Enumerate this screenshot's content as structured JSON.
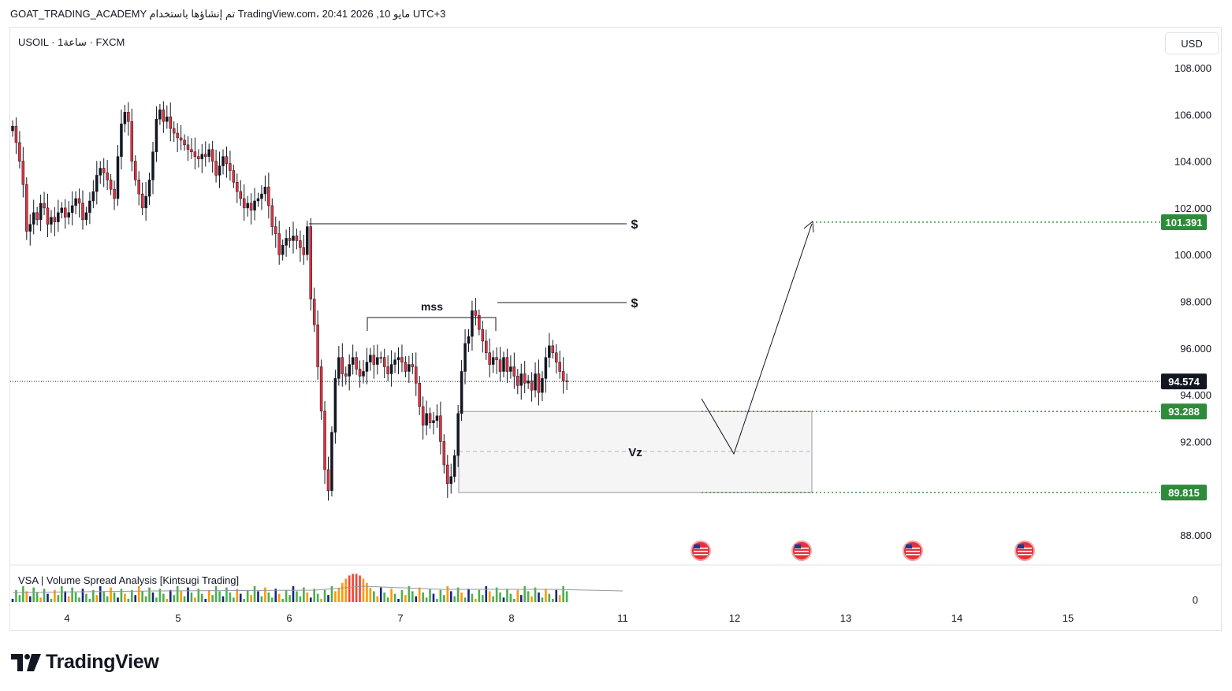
{
  "header": {
    "author_line": "GOAT_TRADING_ACADEMY تم إنشاؤها باستخدام TradingView.com، 20:41 2026 ,10 مايو UTC+3"
  },
  "symbol_line": "USOIL · 1ساعة · FXCM",
  "currency_button": "USD",
  "indicator_label": "VSA  |  Volume Spread Analysis [Kintsugi Trading]",
  "indicator_zero_label": "0",
  "brand": {
    "name": "TradingView"
  },
  "colors": {
    "bull": "#131722",
    "bear": "#e5303b",
    "level_green": "#2e8b3a",
    "current_price_tag": "#131722",
    "volume_green": "#4caf50",
    "volume_orange": "#ff9800",
    "volume_navy": "#1a237e"
  },
  "annotations": {
    "mss": "mss",
    "vz": "Vz",
    "liquidity_1": "$",
    "liquidity_2": "$"
  },
  "price_tags": {
    "current": "94.574",
    "target": "101.391",
    "zone_top": "93.288",
    "zone_bottom": "89.815"
  },
  "chart_data": {
    "type": "candlestick",
    "symbol": "USOIL",
    "timeframe": "1h",
    "exchange": "FXCM",
    "y_ticks": [
      108,
      106,
      104,
      102,
      100,
      98,
      96,
      94,
      92,
      88
    ],
    "y_tick_labels": [
      "108.000",
      "106.000",
      "104.000",
      "102.000",
      "100.000",
      "98.000",
      "96.000",
      "94.000",
      "92.000",
      "88.000"
    ],
    "x_tick_labels": [
      "4",
      "5",
      "6",
      "7",
      "8",
      "11",
      "12",
      "13",
      "14",
      "15"
    ],
    "levels": {
      "current": 94.574,
      "target": 101.391,
      "zone_top": 93.288,
      "zone_bottom": 89.815
    },
    "calendar_events": [
      "us-flag-icon",
      "us-flag-icon",
      "us-flag-icon",
      "us-flag-icon"
    ]
  }
}
